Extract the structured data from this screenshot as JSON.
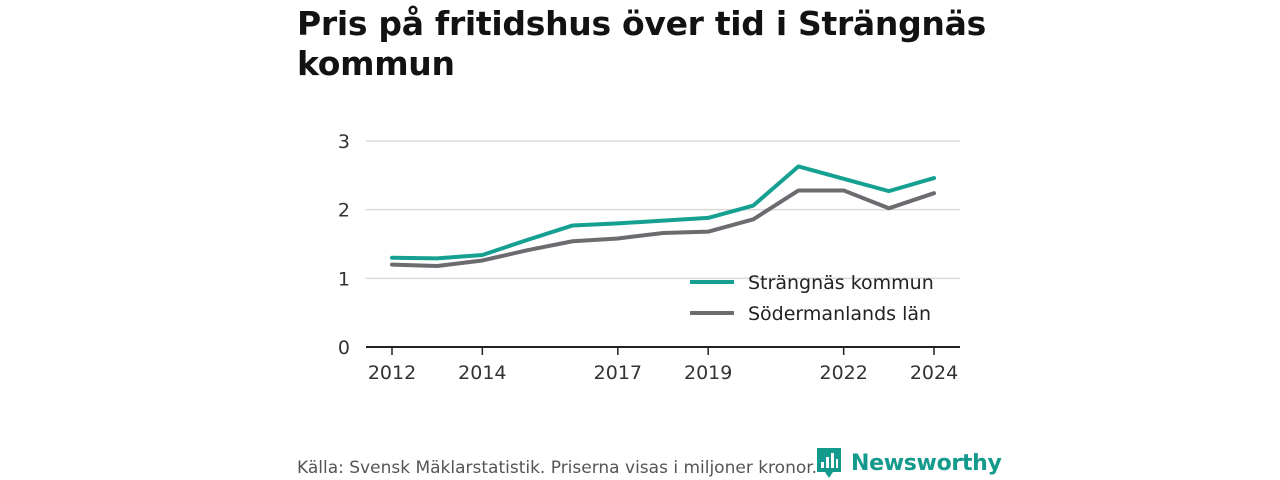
{
  "title": "Pris på fritidshus över tid i Strängnäs kommun",
  "source": "Källa: Svensk Mäklarstatistik. Priserna visas i miljoner kronor.",
  "brand": {
    "name": "Newsworthy",
    "icon": "newsworthy-logo-icon",
    "color": "#139a8c"
  },
  "chart_data": {
    "type": "line",
    "title": "Pris på fritidshus över tid i Strängnäs kommun",
    "xlabel": "",
    "ylabel": "",
    "x": [
      2012,
      2013,
      2014,
      2015,
      2016,
      2017,
      2018,
      2019,
      2020,
      2021,
      2022,
      2023,
      2024
    ],
    "xticks": [
      "2012",
      "2014",
      "2017",
      "2019",
      "2022",
      "2024"
    ],
    "xlim": [
      2012,
      2024
    ],
    "yticks": [
      "0",
      "1",
      "2",
      "3"
    ],
    "ylim": [
      0,
      3
    ],
    "grid": true,
    "legend_position": "bottom-right",
    "series": [
      {
        "name": "Strängnäs kommun",
        "color": "#15a092",
        "values": [
          1.3,
          1.29,
          1.34,
          1.56,
          1.77,
          1.8,
          1.84,
          1.88,
          2.06,
          2.63,
          2.45,
          2.27,
          2.46
        ]
      },
      {
        "name": "Södermanlands län",
        "color": "#6b6b70",
        "values": [
          1.2,
          1.18,
          1.26,
          1.41,
          1.54,
          1.58,
          1.66,
          1.68,
          1.86,
          2.28,
          2.28,
          2.02,
          2.24
        ]
      }
    ]
  }
}
